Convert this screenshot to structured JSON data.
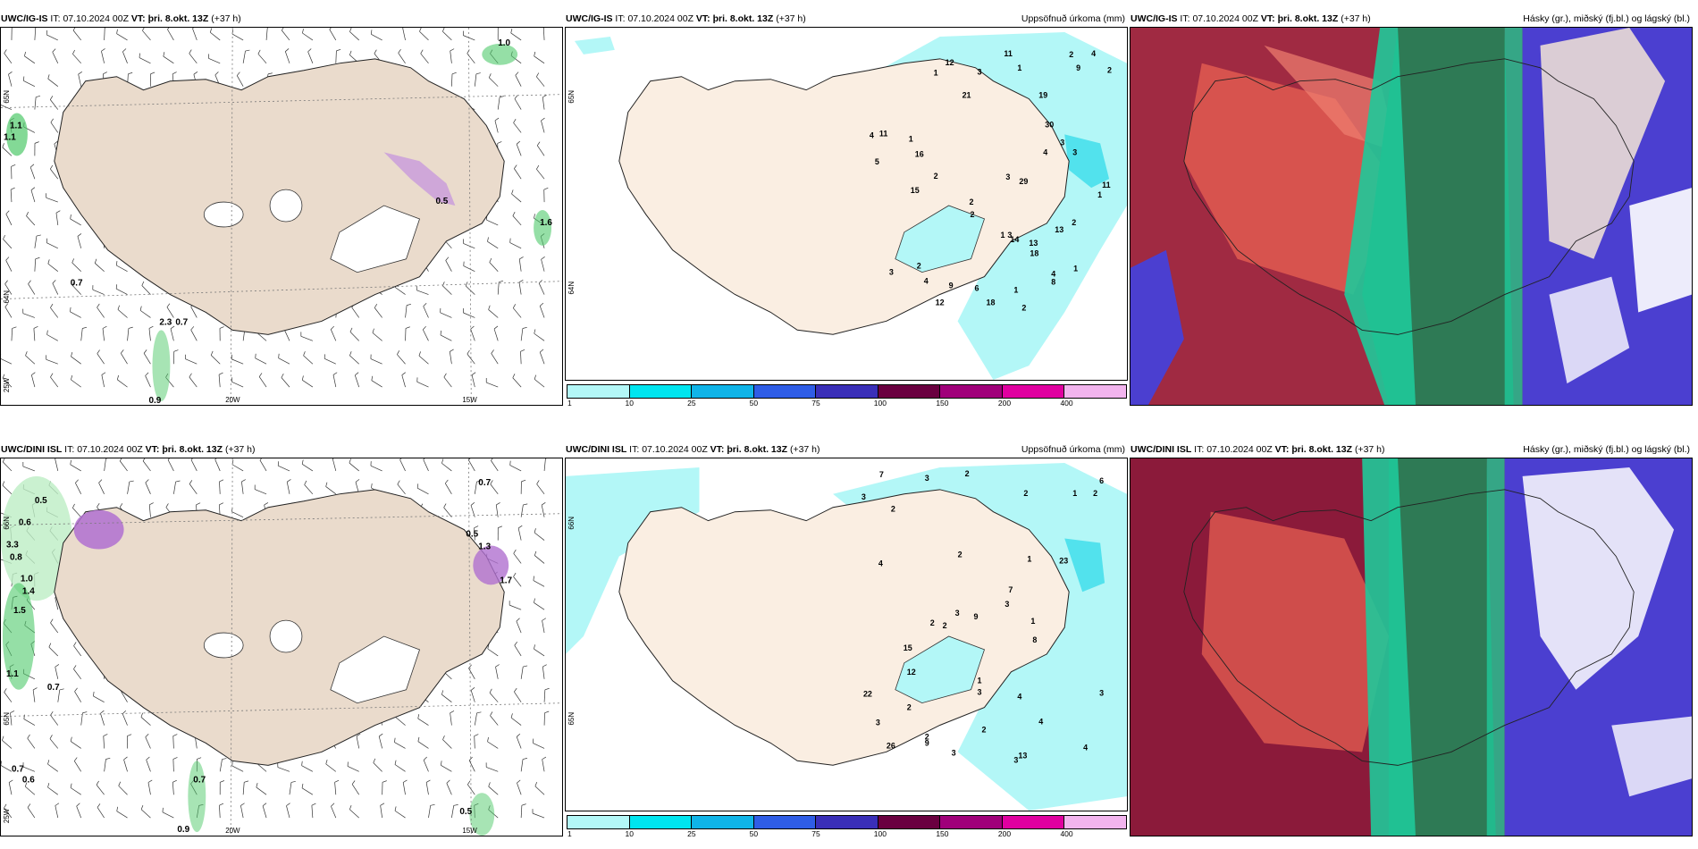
{
  "rows": [
    {
      "model": "UWC/IG-IS",
      "panels": [
        {
          "it_label": "IT:",
          "it_value": "07.10.2024 00Z",
          "vt_label": "VT:",
          "vt_value": "þri. 8.okt. 13Z",
          "lead": "(+37 h)",
          "right_title": "",
          "values": [
            "1.0",
            "1.1",
            "1.1",
            "0.7",
            "2.3",
            "0.7",
            "0.9",
            "0.5",
            "1.6"
          ],
          "axis": {
            "lat1": "65N",
            "lat2": "64N",
            "lon1": "25W",
            "lon2": "20W",
            "lon3": "15W"
          }
        },
        {
          "it_label": "IT:",
          "it_value": "07.10.2024 00Z",
          "vt_label": "VT:",
          "vt_value": "þri. 8.okt. 13Z",
          "lead": "(+37 h)",
          "right_title": "Uppsöfnuð úrkoma (mm)",
          "values": [
            "2",
            "1",
            "2",
            "1",
            "3",
            "1",
            "1",
            "2",
            "2",
            "4",
            "3",
            "4",
            "2",
            "3",
            "4",
            "2",
            "5",
            "9",
            "13",
            "3",
            "4",
            "14",
            "12",
            "8",
            "29",
            "30",
            "15",
            "16",
            "18",
            "21",
            "18",
            "4",
            "19",
            "9",
            "12",
            "6",
            "11",
            "11",
            "11",
            "13",
            "3",
            "3",
            "2",
            "1",
            "1",
            "2",
            "1"
          ],
          "axis": {
            "lat1": "65N",
            "lat2": "64N"
          }
        },
        {
          "it_label": "IT:",
          "it_value": "07.10.2024 00Z",
          "vt_label": "VT:",
          "vt_value": "þri. 8.okt. 13Z",
          "lead": "(+37 h)",
          "right_title": "Hásky (gr.), miðský (fj.bl.) og lágský (bl.)"
        }
      ]
    },
    {
      "model": "UWC/DINI ISL",
      "panels": [
        {
          "it_label": "IT:",
          "it_value": "07.10.2024 00Z",
          "vt_label": "VT:",
          "vt_value": "þri. 8.okt. 13Z",
          "lead": "(+37 h)",
          "right_title": "",
          "values": [
            "0.7",
            "0.5",
            "0.6",
            "3.3",
            "0.8",
            "1.0",
            "1.4",
            "1.5",
            "1.1",
            "0.7",
            "0.7",
            "0.6",
            "0.7",
            "0.9",
            "0.5",
            "0.5",
            "1.3",
            "1.7"
          ],
          "axis": {
            "lat1": "66N",
            "lat2": "65N",
            "lon1": "25W",
            "lon2": "20W",
            "lon3": "15W"
          }
        },
        {
          "it_label": "IT:",
          "it_value": "07.10.2024 00Z",
          "vt_label": "VT:",
          "vt_value": "þri. 8.okt. 13Z",
          "lead": "(+37 h)",
          "right_title": "Uppsöfnuð úrkoma (mm)",
          "values": [
            "3",
            "3",
            "2",
            "4",
            "3",
            "2",
            "2",
            "4",
            "2",
            "2",
            "1",
            "2",
            "3",
            "3",
            "2",
            "3",
            "4",
            "9",
            "2",
            "3",
            "4",
            "6",
            "7",
            "26",
            "23",
            "15",
            "22",
            "12",
            "7",
            "8",
            "9",
            "13",
            "1",
            "2",
            "2",
            "1",
            "3",
            "3",
            "1"
          ],
          "axis": {
            "lat1": "66N",
            "lat2": "65N"
          }
        },
        {
          "it_label": "IT:",
          "it_value": "07.10.2024 00Z",
          "vt_label": "VT:",
          "vt_value": "þri. 8.okt. 13Z",
          "lead": "(+37 h)",
          "right_title": "Hásky (gr.), miðský (fj.bl.) og lágský (bl.)"
        }
      ]
    }
  ],
  "colorbar": {
    "ticks": [
      "1",
      "10",
      "25",
      "50",
      "75",
      "100",
      "150",
      "200",
      "400"
    ],
    "colors": [
      "#b3f7f7",
      "#00e5ef",
      "#10b4e8",
      "#2f5de6",
      "#3a2fb8",
      "#6a0040",
      "#a0007a",
      "#e000a0",
      "#f2b4ee"
    ]
  },
  "palette": {
    "land": "#f4e6d6",
    "land_shaded": "#eadbcc",
    "precip_green": "#4fc96a",
    "precip_light": "#bdeec4",
    "purple": "#b070d0",
    "cyan": "#b3f7f7",
    "high_cloud": "#8b1a3a",
    "mid_cloud": "#2e7a55",
    "low_cloud": "#4b3fd0",
    "cloud_red": "#e05a50"
  }
}
